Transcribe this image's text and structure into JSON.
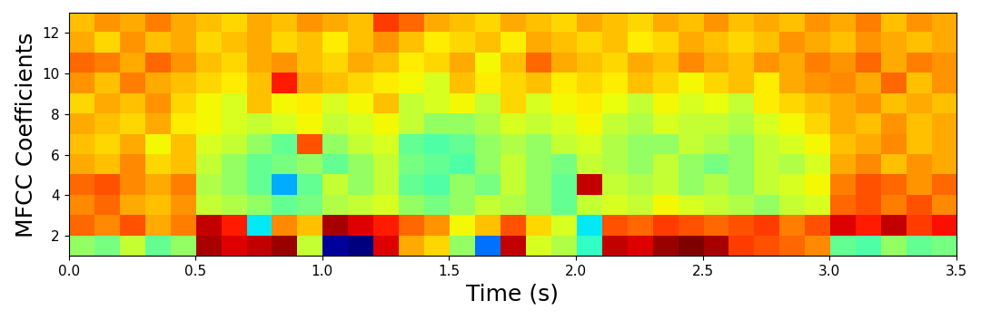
{
  "chart_data": {
    "type": "heatmap",
    "xlabel": "Time (s)",
    "ylabel": "MFCC Coefficients",
    "color": "jet",
    "xlim": [
      0,
      3.5
    ],
    "ylim": [
      1,
      13
    ],
    "xticks": [
      {
        "value": 0,
        "label": "0.0"
      },
      {
        "value": 0.5,
        "label": "0.5"
      },
      {
        "value": 1,
        "label": "1.0"
      },
      {
        "value": 1.5,
        "label": "1.5"
      },
      {
        "value": 2,
        "label": "2.0"
      },
      {
        "value": 2.5,
        "label": "2.5"
      },
      {
        "value": 3,
        "label": "3.0"
      },
      {
        "value": 3.5,
        "label": "3.5"
      }
    ],
    "yticks": [
      2,
      4,
      6,
      8,
      10,
      12
    ],
    "cells": [
      [
        0.55,
        0.52,
        0.6,
        0.5,
        0.55,
        0.92,
        0.88,
        0.9,
        0.93,
        0.6,
        0.12,
        0.1,
        0.88,
        0.72,
        0.68,
        0.55,
        0.3,
        0.9,
        0.62,
        0.58,
        0.45,
        0.9,
        0.88,
        0.93,
        0.95,
        0.92,
        0.82,
        0.8,
        0.78,
        0.75,
        0.5,
        0.48,
        0.55,
        0.5,
        0.52
      ],
      [
        0.78,
        0.75,
        0.8,
        0.72,
        0.76,
        0.9,
        0.85,
        0.4,
        0.75,
        0.7,
        0.92,
        0.88,
        0.85,
        0.78,
        0.74,
        0.65,
        0.7,
        0.8,
        0.68,
        0.62,
        0.4,
        0.8,
        0.78,
        0.82,
        0.8,
        0.78,
        0.8,
        0.82,
        0.76,
        0.8,
        0.88,
        0.85,
        0.9,
        0.82,
        0.86
      ],
      [
        0.75,
        0.78,
        0.72,
        0.7,
        0.74,
        0.6,
        0.58,
        0.55,
        0.5,
        0.52,
        0.58,
        0.6,
        0.62,
        0.55,
        0.52,
        0.55,
        0.6,
        0.58,
        0.55,
        0.5,
        0.6,
        0.62,
        0.6,
        0.65,
        0.62,
        0.6,
        0.58,
        0.55,
        0.6,
        0.62,
        0.78,
        0.8,
        0.76,
        0.8,
        0.75
      ],
      [
        0.78,
        0.8,
        0.75,
        0.72,
        0.76,
        0.58,
        0.55,
        0.5,
        0.35,
        0.5,
        0.6,
        0.55,
        0.6,
        0.5,
        0.48,
        0.55,
        0.52,
        0.6,
        0.55,
        0.5,
        0.9,
        0.6,
        0.58,
        0.6,
        0.55,
        0.58,
        0.55,
        0.6,
        0.62,
        0.65,
        0.76,
        0.8,
        0.78,
        0.74,
        0.78
      ],
      [
        0.72,
        0.7,
        0.75,
        0.68,
        0.7,
        0.6,
        0.55,
        0.5,
        0.52,
        0.55,
        0.5,
        0.55,
        0.6,
        0.52,
        0.5,
        0.48,
        0.55,
        0.6,
        0.55,
        0.52,
        0.6,
        0.58,
        0.55,
        0.6,
        0.55,
        0.52,
        0.55,
        0.6,
        0.58,
        0.62,
        0.72,
        0.75,
        0.7,
        0.74,
        0.72
      ],
      [
        0.7,
        0.68,
        0.72,
        0.65,
        0.7,
        0.62,
        0.6,
        0.55,
        0.5,
        0.8,
        0.55,
        0.6,
        0.62,
        0.5,
        0.48,
        0.5,
        0.55,
        0.58,
        0.55,
        0.6,
        0.62,
        0.58,
        0.55,
        0.55,
        0.6,
        0.58,
        0.55,
        0.6,
        0.62,
        0.65,
        0.7,
        0.72,
        0.75,
        0.7,
        0.72
      ],
      [
        0.72,
        0.7,
        0.68,
        0.72,
        0.66,
        0.65,
        0.62,
        0.6,
        0.62,
        0.65,
        0.6,
        0.62,
        0.65,
        0.6,
        0.55,
        0.55,
        0.58,
        0.62,
        0.6,
        0.62,
        0.65,
        0.6,
        0.58,
        0.62,
        0.6,
        0.6,
        0.58,
        0.62,
        0.65,
        0.68,
        0.72,
        0.7,
        0.74,
        0.7,
        0.72
      ],
      [
        0.68,
        0.72,
        0.7,
        0.74,
        0.68,
        0.65,
        0.62,
        0.7,
        0.65,
        0.66,
        0.62,
        0.65,
        0.7,
        0.6,
        0.62,
        0.65,
        0.6,
        0.68,
        0.62,
        0.65,
        0.66,
        0.64,
        0.6,
        0.65,
        0.62,
        0.64,
        0.6,
        0.66,
        0.68,
        0.7,
        0.72,
        0.74,
        0.7,
        0.72,
        0.7
      ],
      [
        0.74,
        0.7,
        0.76,
        0.72,
        0.7,
        0.68,
        0.66,
        0.7,
        0.85,
        0.72,
        0.7,
        0.68,
        0.66,
        0.65,
        0.62,
        0.7,
        0.66,
        0.68,
        0.7,
        0.66,
        0.68,
        0.66,
        0.7,
        0.68,
        0.65,
        0.68,
        0.7,
        0.66,
        0.72,
        0.74,
        0.75,
        0.72,
        0.78,
        0.7,
        0.74
      ],
      [
        0.78,
        0.76,
        0.72,
        0.78,
        0.74,
        0.7,
        0.68,
        0.72,
        0.74,
        0.7,
        0.68,
        0.72,
        0.7,
        0.66,
        0.68,
        0.72,
        0.65,
        0.7,
        0.78,
        0.72,
        0.7,
        0.68,
        0.72,
        0.7,
        0.75,
        0.72,
        0.7,
        0.74,
        0.72,
        0.76,
        0.74,
        0.78,
        0.72,
        0.76,
        0.74
      ],
      [
        0.72,
        0.68,
        0.74,
        0.7,
        0.72,
        0.68,
        0.7,
        0.72,
        0.68,
        0.7,
        0.66,
        0.7,
        0.74,
        0.7,
        0.66,
        0.68,
        0.7,
        0.66,
        0.72,
        0.7,
        0.68,
        0.7,
        0.66,
        0.68,
        0.72,
        0.7,
        0.68,
        0.7,
        0.74,
        0.72,
        0.7,
        0.74,
        0.72,
        0.7,
        0.72
      ],
      [
        0.7,
        0.74,
        0.72,
        0.76,
        0.72,
        0.7,
        0.68,
        0.72,
        0.7,
        0.74,
        0.72,
        0.7,
        0.82,
        0.78,
        0.72,
        0.7,
        0.68,
        0.72,
        0.7,
        0.68,
        0.72,
        0.7,
        0.68,
        0.72,
        0.7,
        0.74,
        0.7,
        0.72,
        0.7,
        0.74,
        0.72,
        0.76,
        0.7,
        0.74,
        0.72
      ]
    ]
  }
}
